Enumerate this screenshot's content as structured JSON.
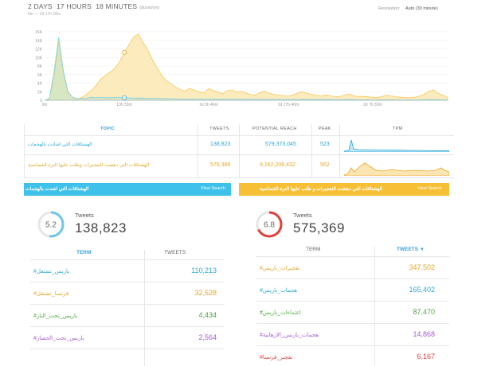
{
  "header": {
    "duration_days": "2 DAYS",
    "duration_hours": "17 HOURS",
    "duration_minutes": "18 MINUTES",
    "duration_note": "(duration)",
    "duration_sub": "0m — 2d 17h 18m",
    "resolution_label": "Resolution:",
    "resolution_value": "Auto (30 minute)"
  },
  "chart_data": {
    "type": "area",
    "x_tick_labels": [
      "0m",
      "13h 53m",
      "1d 3h 46m",
      "1d 17h 40m",
      "2d 7h 33m"
    ],
    "y_tick_labels": [
      "0",
      "2K",
      "4K",
      "6K",
      "8K",
      "10K",
      "12K",
      "14K",
      "16K"
    ],
    "ylim": [
      0,
      16000
    ],
    "grid": true,
    "series": [
      {
        "color": "#f7c85c",
        "values": [
          0,
          300,
          5500,
          13800,
          6500,
          1900,
          700,
          350,
          700,
          1400,
          2300,
          3500,
          5000,
          5800,
          6600,
          7500,
          9000,
          11200,
          13000,
          14800,
          15500,
          13500,
          11800,
          9500,
          7600,
          5800,
          4600,
          3800,
          3100,
          2500,
          2200,
          2800,
          2300,
          2000,
          1700,
          2700,
          2300,
          1900,
          1500,
          2300,
          2400,
          1900,
          2100,
          1700,
          1300,
          1200,
          1800,
          2100,
          1600,
          1400,
          1200,
          1100,
          1000,
          1200,
          1700,
          2000,
          1600,
          1400,
          1200,
          1000,
          1300,
          1100,
          800,
          900,
          1200,
          1500,
          1000,
          900,
          900,
          800,
          700,
          600,
          900,
          1200,
          1000,
          800,
          700,
          600,
          600,
          700,
          1000,
          1400,
          2100,
          2400,
          1600,
          1200,
          700
        ]
      },
      {
        "color": "#7fd1e6",
        "values": [
          0,
          400,
          6500,
          14700,
          7000,
          2000,
          700,
          400,
          400,
          500,
          700,
          650,
          650,
          600,
          620,
          650,
          650,
          600,
          550,
          500,
          520,
          500,
          480,
          460,
          420,
          400,
          380,
          350,
          330,
          300,
          280,
          300,
          280,
          260,
          240,
          260,
          250,
          230,
          220,
          240,
          250,
          230,
          220,
          200,
          190,
          180,
          200,
          210,
          190,
          180,
          170,
          160,
          150,
          160,
          180,
          200,
          180,
          160,
          150,
          140,
          150,
          140,
          130,
          130,
          140,
          150,
          130,
          120,
          120,
          110,
          100,
          100,
          110,
          120,
          110,
          100,
          100,
          90,
          90,
          100,
          110,
          120,
          150,
          160,
          130,
          110,
          90
        ]
      }
    ]
  },
  "topic_table": {
    "headers": {
      "topic": "TOPIC",
      "tweets": "TWEETS",
      "reach": "POTENTIAL REACH",
      "peak": "PEAK",
      "tpm": "TPM"
    },
    "rows": [
      {
        "topic": "الهشتاقات التي اشادت بالهجمات",
        "tweets": "138,823",
        "reach": "579,373,045",
        "peak": "523",
        "color": "#2aa8d8"
      },
      {
        "topic": "الهشتاقات التي دهشت التفجيرات وطلب عليها النزة القصاصية",
        "tweets": "575,369",
        "reach": "9,162,206,432",
        "peak": "562",
        "color": "#e8a624"
      }
    ]
  },
  "panel_left": {
    "title": "الهشتاقات التي اشدت بالهجمات",
    "view_search": "View Search",
    "bar_color": "#3ec1ea",
    "gauge_value": "5.2",
    "gauge_fraction": 0.52,
    "gauge_color": "#6fc6e8",
    "tweets_label": "Tweets",
    "tweets_value": "138,823",
    "term_header": "TERM",
    "tweets_header": "TWEETS",
    "terms": [
      {
        "term": "#باريس_تشتعل",
        "value": "110,213",
        "color": "#2aa8d8"
      },
      {
        "term": "#فرنسا_تشتعل",
        "value": "32,528",
        "color": "#e8a624"
      },
      {
        "term": "#باريس_تحت_النار",
        "value": "4,434",
        "color": "#4aaa3c"
      },
      {
        "term": "#باريس_تحت_الحصار",
        "value": "2,564",
        "color": "#a45bd6"
      }
    ]
  },
  "panel_right": {
    "title": "الهشتاقات التي دهشت التفجيرات و طلب عليها النزة القصاصية",
    "view_search": "View Search",
    "bar_color": "#f7bf35",
    "gauge_value": "6.8",
    "gauge_fraction": 0.68,
    "gauge_color": "#e0403a",
    "tweets_label": "Tweets",
    "tweets_value": "575,369",
    "term_header": "TERM",
    "tweets_header": "TWEETS",
    "sort_icon": "sort-down-icon",
    "terms": [
      {
        "term": "#تفجيرات_باريس",
        "value": "347,502",
        "color": "#e8a624"
      },
      {
        "term": "#هجمات_باريس",
        "value": "165,402",
        "color": "#2aa8d8"
      },
      {
        "term": "#اعتداءات_باريس",
        "value": "87,470",
        "color": "#4aaa3c"
      },
      {
        "term": "#هجمات_باريس_الارهابية",
        "value": "14,868",
        "color": "#a45bd6"
      },
      {
        "term": "#تفجير_فرنسا",
        "value": "6,167",
        "color": "#e0403a"
      }
    ]
  }
}
